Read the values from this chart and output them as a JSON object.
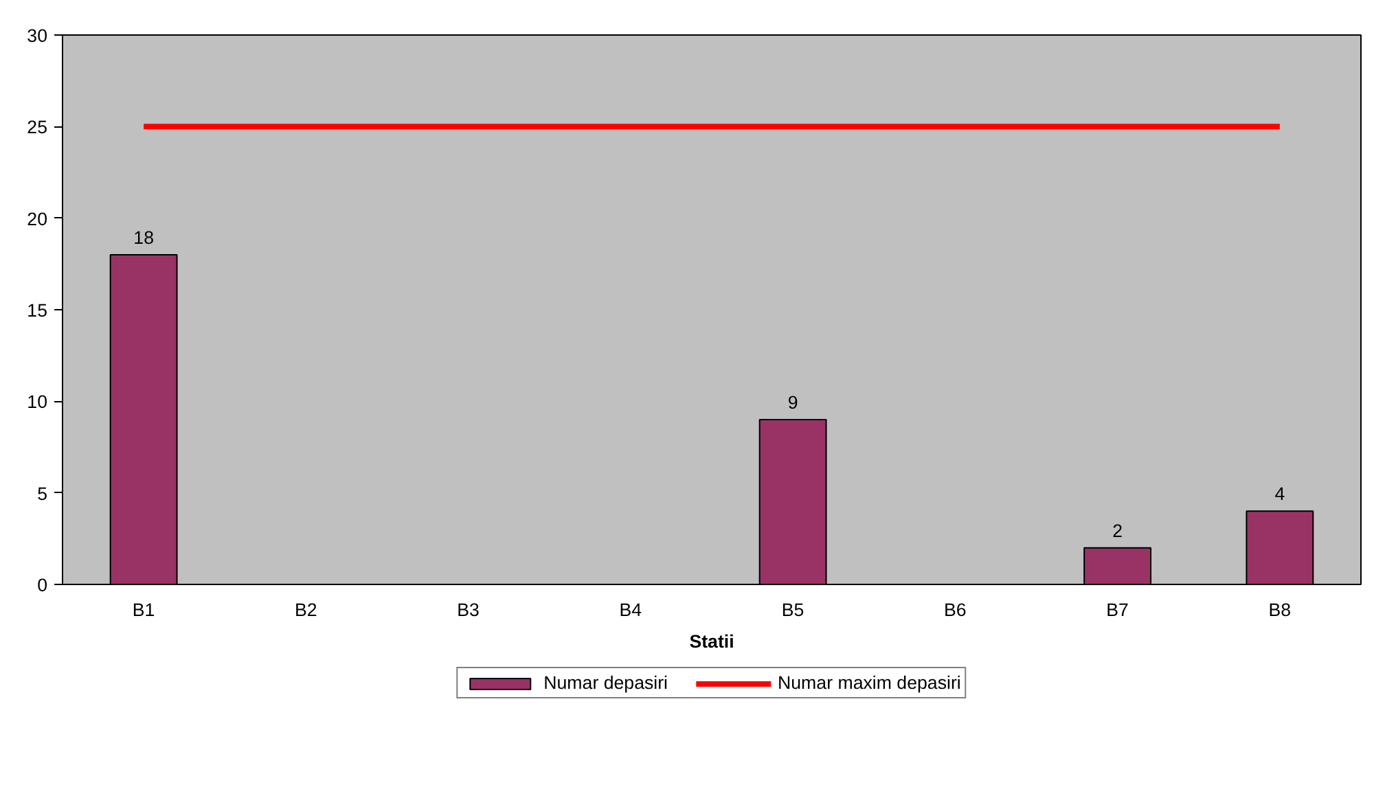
{
  "chart_data": {
    "type": "bar",
    "xlabel": "Statii",
    "categories": [
      "B1",
      "B2",
      "B3",
      "B4",
      "B5",
      "B6",
      "B7",
      "B8"
    ],
    "series": [
      {
        "name": "Numar depasiri",
        "type": "bar",
        "color": "#993366",
        "values": [
          18,
          0,
          0,
          0,
          9,
          0,
          2,
          4
        ],
        "value_labels": [
          "18",
          null,
          null,
          null,
          "9",
          null,
          "2",
          "4"
        ]
      },
      {
        "name": "Numar maxim depasiri",
        "type": "line",
        "color": "#ff0000",
        "values": [
          25,
          25,
          25,
          25,
          25,
          25,
          25,
          25
        ]
      }
    ],
    "ylim": [
      0,
      30
    ],
    "yticks": [
      0,
      5,
      10,
      15,
      20,
      25,
      30
    ],
    "grid": false,
    "legend": "bottom"
  }
}
